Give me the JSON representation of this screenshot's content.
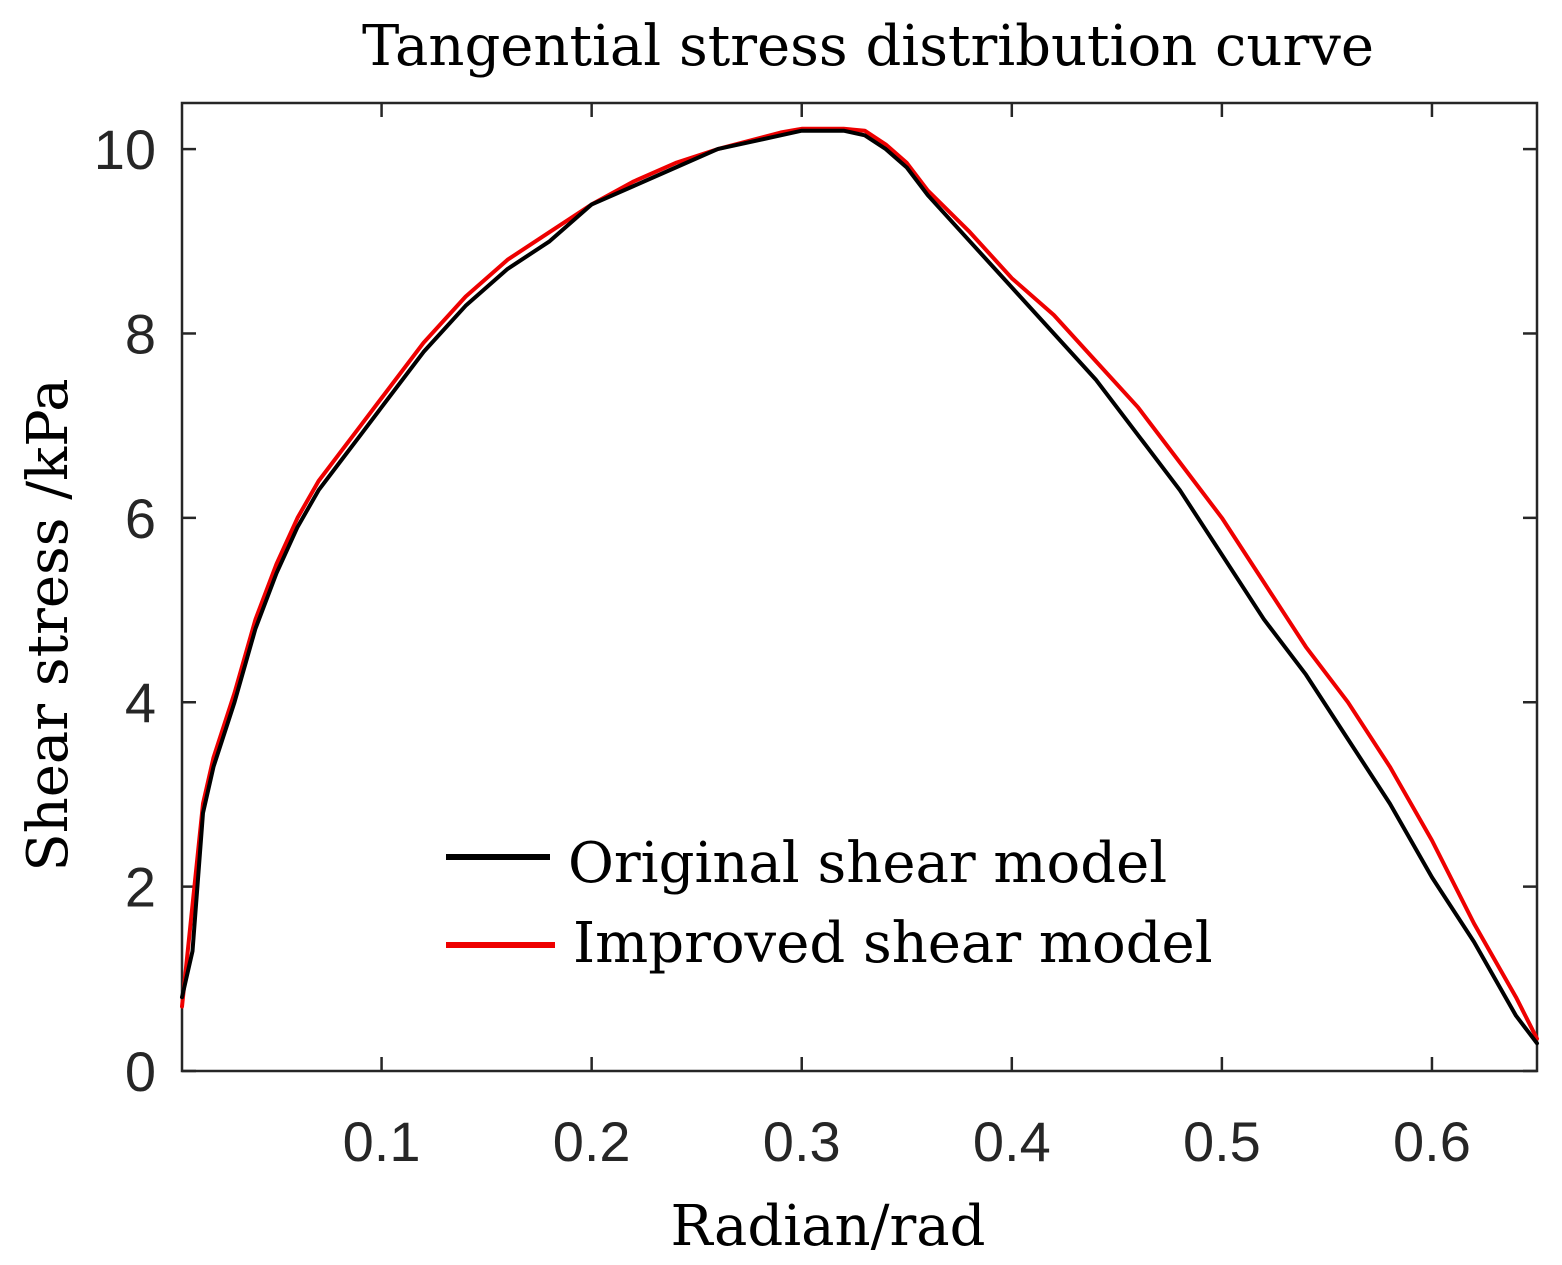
{
  "chart_data": {
    "type": "line",
    "title": "Tangential stress distribution curve",
    "xlabel": "Radian/rad",
    "ylabel": "Shear stress /kPa",
    "xlim": [
      0.005,
      0.65
    ],
    "ylim": [
      0,
      10.5
    ],
    "xticks": [
      0.1,
      0.2,
      0.3,
      0.4,
      0.5,
      0.6
    ],
    "xtick_labels": [
      "0.1",
      "0.2",
      "0.3",
      "0.4",
      "0.5",
      "0.6"
    ],
    "yticks": [
      0,
      2,
      4,
      6,
      8,
      10
    ],
    "ytick_labels": [
      "0",
      "2",
      "4",
      "6",
      "8",
      "10"
    ],
    "grid": false,
    "legend_position": "center-left",
    "series": [
      {
        "name": "Original shear model",
        "color": "#000000",
        "x": [
          0.005,
          0.01,
          0.015,
          0.02,
          0.03,
          0.04,
          0.05,
          0.06,
          0.07,
          0.08,
          0.09,
          0.1,
          0.12,
          0.14,
          0.16,
          0.18,
          0.2,
          0.22,
          0.24,
          0.26,
          0.28,
          0.29,
          0.3,
          0.31,
          0.32,
          0.33,
          0.34,
          0.35,
          0.36,
          0.38,
          0.4,
          0.42,
          0.44,
          0.46,
          0.48,
          0.5,
          0.52,
          0.54,
          0.56,
          0.58,
          0.6,
          0.62,
          0.64,
          0.65
        ],
        "y": [
          0.8,
          1.3,
          2.8,
          3.3,
          4.0,
          4.8,
          5.4,
          5.9,
          6.3,
          6.6,
          6.9,
          7.2,
          7.8,
          8.3,
          8.7,
          9.0,
          9.4,
          9.6,
          9.8,
          10.0,
          10.1,
          10.15,
          10.2,
          10.2,
          10.2,
          10.15,
          10.0,
          9.8,
          9.5,
          9.0,
          8.5,
          8.0,
          7.5,
          6.9,
          6.3,
          5.6,
          4.9,
          4.3,
          3.6,
          2.9,
          2.1,
          1.4,
          0.6,
          0.3
        ]
      },
      {
        "name": "Improved shear model",
        "color": "#ee0000",
        "x": [
          0.005,
          0.01,
          0.015,
          0.02,
          0.03,
          0.04,
          0.05,
          0.06,
          0.07,
          0.08,
          0.09,
          0.1,
          0.12,
          0.14,
          0.16,
          0.18,
          0.2,
          0.22,
          0.24,
          0.26,
          0.28,
          0.29,
          0.3,
          0.31,
          0.32,
          0.33,
          0.34,
          0.35,
          0.36,
          0.38,
          0.4,
          0.42,
          0.44,
          0.46,
          0.48,
          0.5,
          0.52,
          0.54,
          0.56,
          0.58,
          0.6,
          0.62,
          0.64,
          0.65
        ],
        "y": [
          0.7,
          1.8,
          2.9,
          3.4,
          4.1,
          4.9,
          5.5,
          6.0,
          6.4,
          6.7,
          7.0,
          7.3,
          7.9,
          8.4,
          8.8,
          9.1,
          9.4,
          9.65,
          9.85,
          10.0,
          10.12,
          10.18,
          10.22,
          10.22,
          10.22,
          10.2,
          10.05,
          9.85,
          9.55,
          9.1,
          8.6,
          8.2,
          7.7,
          7.2,
          6.6,
          6.0,
          5.3,
          4.6,
          4.0,
          3.3,
          2.5,
          1.6,
          0.8,
          0.35
        ]
      }
    ]
  }
}
